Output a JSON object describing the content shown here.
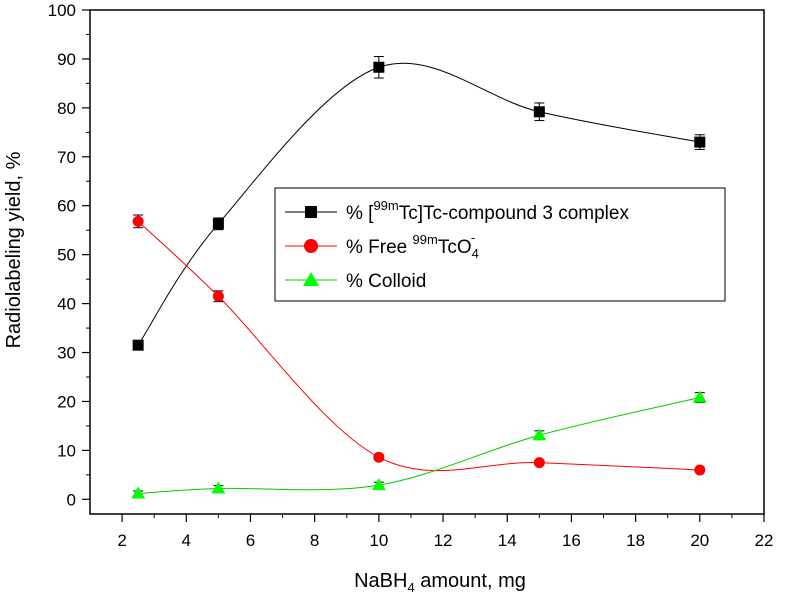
{
  "chart_data": {
    "type": "line",
    "xlabel": {
      "main": "NaBH",
      "sub": "4",
      "rest": " amount, mg"
    },
    "ylabel": "Radiolabeling yield, %",
    "xlim": [
      1,
      22
    ],
    "ylim": [
      -3,
      100
    ],
    "x_ticks": [
      2,
      4,
      6,
      8,
      10,
      12,
      14,
      16,
      18,
      20,
      22
    ],
    "y_ticks": [
      0,
      10,
      20,
      30,
      40,
      50,
      60,
      70,
      80,
      90,
      100
    ],
    "x_tick_labels": [
      "2",
      "4",
      "6",
      "8",
      "10",
      "12",
      "14",
      "16",
      "18",
      "20",
      "22"
    ],
    "y_tick_labels": [
      "0",
      "10",
      "20",
      "30",
      "40",
      "50",
      "60",
      "70",
      "80",
      "90",
      "100"
    ],
    "legend_position": "center-right",
    "series": [
      {
        "name": "% [99mTc]Tc-compound 3 complex",
        "label_parts": {
          "a": "% [",
          "sup": "99m",
          "b": "Tc]Tc-compound 3 complex"
        },
        "color": "#000000",
        "marker": "square",
        "x": [
          2.5,
          5,
          10,
          15,
          20
        ],
        "y": [
          31.5,
          56.3,
          88.3,
          79.2,
          73.0
        ],
        "err": [
          0.5,
          1.2,
          2.2,
          1.8,
          1.5
        ]
      },
      {
        "name": "% Free 99mTcO4-",
        "label_parts": {
          "a": "% Free ",
          "sup": "99m",
          "b": "TcO",
          "sub": "4",
          "sup2": "-"
        },
        "color": "#ff0000",
        "marker": "circle",
        "x": [
          2.5,
          5,
          10,
          15,
          20
        ],
        "y": [
          56.8,
          41.5,
          8.6,
          7.5,
          6.0
        ],
        "err": [
          1.3,
          1.1,
          0.5,
          0.5,
          0.4
        ]
      },
      {
        "name": "% Colloid",
        "label_parts": {
          "a": "% Colloid"
        },
        "color": "#00ff00",
        "marker": "triangle",
        "x": [
          2.5,
          5,
          10,
          15,
          20
        ],
        "y": [
          1.2,
          2.2,
          2.9,
          13.1,
          20.8
        ],
        "err": [
          0.5,
          0.6,
          0.6,
          0.9,
          1.0
        ]
      }
    ]
  }
}
